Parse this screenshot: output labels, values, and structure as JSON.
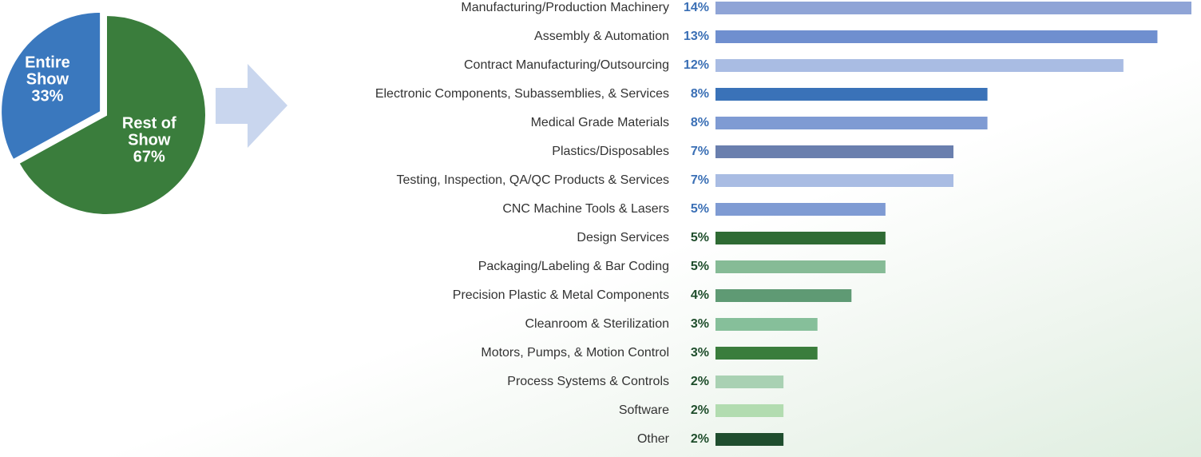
{
  "chart_data": [
    {
      "type": "pie",
      "categories": [
        "Entire Show",
        "Rest of Show"
      ],
      "values": [
        33,
        67
      ],
      "value_labels": [
        "33%",
        "67%"
      ],
      "colors": [
        "#3a78be",
        "#3a7d3c"
      ]
    },
    {
      "type": "bar",
      "orientation": "horizontal",
      "categories": [
        "Manufacturing/Production Machinery",
        "Assembly & Automation",
        "Contract Manufacturing/Outsourcing",
        "Electronic Components, Subassemblies, & Services",
        "Medical Grade Materials",
        "Plastics/Disposables",
        "Testing, Inspection, QA/QC Products & Services",
        "CNC Machine Tools & Lasers",
        "Design Services",
        "Packaging/Labeling & Bar Coding",
        "Precision Plastic & Metal Components",
        "Cleanroom & Sterilization",
        "Motors, Pumps, & Motion Control",
        "Process Systems & Controls",
        "Software",
        "Other"
      ],
      "values": [
        14,
        13,
        12,
        8,
        8,
        7,
        7,
        5,
        5,
        5,
        4,
        3,
        3,
        2,
        2,
        2
      ],
      "value_labels": [
        "14%",
        "13%",
        "12%",
        "8%",
        "8%",
        "7%",
        "7%",
        "5%",
        "5%",
        "5%",
        "4%",
        "3%",
        "3%",
        "2%",
        "2%",
        "2%"
      ],
      "colors": [
        "#8fa4d6",
        "#6f8fcf",
        "#a9bce3",
        "#3a72b8",
        "#7f9bd3",
        "#6a7fae",
        "#a9bce3",
        "#7f9bd3",
        "#2f6b34",
        "#86bb96",
        "#5f9a74",
        "#86bf9a",
        "#3a7d3c",
        "#a9d1b3",
        "#b2dcb0",
        "#1f4d2e"
      ],
      "label_colors": [
        "#3a6fb5",
        "#3a6fb5",
        "#3a6fb5",
        "#3a6fb5",
        "#3a6fb5",
        "#3a6fb5",
        "#3a6fb5",
        "#3a6fb5",
        "#1e4d2b",
        "#1e4d2b",
        "#1e4d2b",
        "#1e4d2b",
        "#1e4d2b",
        "#1e4d2b",
        "#1e4d2b",
        "#1e4d2b"
      ]
    }
  ]
}
